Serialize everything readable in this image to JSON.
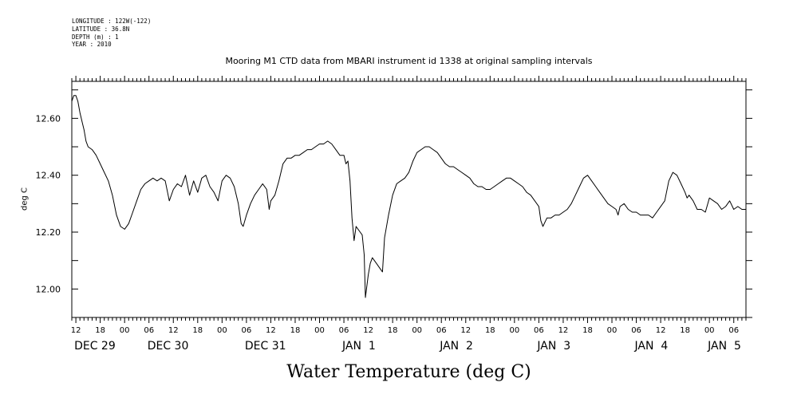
{
  "header": {
    "meta_lines": [
      "LONGITUDE : 122W(-122)",
      "LATITUDE : 36.8N",
      "DEPTH (m) : 1",
      "YEAR : 2010"
    ]
  },
  "chart_data": {
    "type": "line",
    "title": "Mooring M1 CTD data from MBARI instrument id 1338 at original sampling intervals",
    "xlabel": "Water Temperature (deg C)",
    "ylabel": "deg C",
    "ylim": [
      11.9,
      12.73
    ],
    "yticks": [
      12.0,
      12.2,
      12.4,
      12.6
    ],
    "ytick_labels": [
      "12.00",
      "12.20",
      "12.40",
      "12.60"
    ],
    "x_unit": "hours from 2010-12-29 00:00",
    "xlim": [
      11,
      177
    ],
    "hour_ticks": [
      {
        "h": 12,
        "label": "12"
      },
      {
        "h": 18,
        "label": "18"
      },
      {
        "h": 24,
        "label": "00"
      },
      {
        "h": 30,
        "label": "06"
      },
      {
        "h": 36,
        "label": "12"
      },
      {
        "h": 42,
        "label": "18"
      },
      {
        "h": 48,
        "label": "00"
      },
      {
        "h": 54,
        "label": "06"
      },
      {
        "h": 60,
        "label": "12"
      },
      {
        "h": 66,
        "label": "18"
      },
      {
        "h": 72,
        "label": "00"
      },
      {
        "h": 78,
        "label": "06"
      },
      {
        "h": 84,
        "label": "12"
      },
      {
        "h": 90,
        "label": "18"
      },
      {
        "h": 96,
        "label": "00"
      },
      {
        "h": 102,
        "label": "06"
      },
      {
        "h": 108,
        "label": "12"
      },
      {
        "h": 114,
        "label": "18"
      },
      {
        "h": 120,
        "label": "00"
      },
      {
        "h": 126,
        "label": "06"
      },
      {
        "h": 132,
        "label": "12"
      },
      {
        "h": 138,
        "label": "18"
      },
      {
        "h": 144,
        "label": "00"
      },
      {
        "h": 150,
        "label": "06"
      },
      {
        "h": 156,
        "label": "12"
      },
      {
        "h": 162,
        "label": "18"
      },
      {
        "h": 168,
        "label": "00"
      },
      {
        "h": 174,
        "label": "06"
      }
    ],
    "date_labels": [
      {
        "h": 12,
        "label": "DEC 29"
      },
      {
        "h": 30,
        "label": "DEC 30"
      },
      {
        "h": 54,
        "label": "DEC 31"
      },
      {
        "h": 78,
        "label": "JAN  1"
      },
      {
        "h": 102,
        "label": "JAN  2"
      },
      {
        "h": 126,
        "label": "JAN  3"
      },
      {
        "h": 150,
        "label": "JAN  4"
      },
      {
        "h": 168,
        "label": "JAN  5"
      }
    ],
    "series": [
      {
        "color": "#000000",
        "points": [
          [
            11.0,
            12.66
          ],
          [
            11.5,
            12.68
          ],
          [
            12.0,
            12.68
          ],
          [
            12.5,
            12.66
          ],
          [
            13.0,
            12.62
          ],
          [
            13.5,
            12.59
          ],
          [
            14.0,
            12.56
          ],
          [
            14.5,
            12.52
          ],
          [
            15.0,
            12.5
          ],
          [
            16.0,
            12.49
          ],
          [
            17.0,
            12.47
          ],
          [
            18.0,
            12.44
          ],
          [
            19.0,
            12.41
          ],
          [
            20.0,
            12.38
          ],
          [
            21.0,
            12.33
          ],
          [
            22.0,
            12.26
          ],
          [
            23.0,
            12.22
          ],
          [
            24.0,
            12.21
          ],
          [
            25.0,
            12.23
          ],
          [
            26.0,
            12.27
          ],
          [
            27.0,
            12.31
          ],
          [
            28.0,
            12.35
          ],
          [
            29.0,
            12.37
          ],
          [
            30.0,
            12.38
          ],
          [
            31.0,
            12.39
          ],
          [
            32.0,
            12.38
          ],
          [
            33.0,
            12.39
          ],
          [
            34.0,
            12.38
          ],
          [
            35.0,
            12.31
          ],
          [
            36.0,
            12.35
          ],
          [
            37.0,
            12.37
          ],
          [
            38.0,
            12.36
          ],
          [
            39.0,
            12.4
          ],
          [
            40.0,
            12.33
          ],
          [
            41.0,
            12.38
          ],
          [
            42.0,
            12.34
          ],
          [
            43.0,
            12.39
          ],
          [
            44.0,
            12.4
          ],
          [
            45.0,
            12.36
          ],
          [
            46.0,
            12.34
          ],
          [
            47.0,
            12.31
          ],
          [
            48.0,
            12.38
          ],
          [
            49.0,
            12.4
          ],
          [
            50.0,
            12.39
          ],
          [
            51.0,
            12.36
          ],
          [
            52.0,
            12.3
          ],
          [
            52.7,
            12.23
          ],
          [
            53.2,
            12.22
          ],
          [
            54.0,
            12.26
          ],
          [
            55.0,
            12.3
          ],
          [
            56.0,
            12.33
          ],
          [
            57.0,
            12.35
          ],
          [
            58.0,
            12.37
          ],
          [
            59.0,
            12.35
          ],
          [
            59.6,
            12.28
          ],
          [
            60.0,
            12.31
          ],
          [
            61.0,
            12.33
          ],
          [
            62.0,
            12.38
          ],
          [
            63.0,
            12.44
          ],
          [
            64.0,
            12.46
          ],
          [
            65.0,
            12.46
          ],
          [
            66.0,
            12.47
          ],
          [
            67.0,
            12.47
          ],
          [
            68.0,
            12.48
          ],
          [
            69.0,
            12.49
          ],
          [
            70.0,
            12.49
          ],
          [
            71.0,
            12.5
          ],
          [
            72.0,
            12.51
          ],
          [
            73.0,
            12.51
          ],
          [
            74.0,
            12.52
          ],
          [
            75.0,
            12.51
          ],
          [
            76.0,
            12.49
          ],
          [
            77.0,
            12.47
          ],
          [
            78.0,
            12.47
          ],
          [
            78.5,
            12.44
          ],
          [
            79.0,
            12.45
          ],
          [
            79.5,
            12.38
          ],
          [
            80.0,
            12.25
          ],
          [
            80.5,
            12.17
          ],
          [
            81.0,
            12.22
          ],
          [
            82.0,
            12.2
          ],
          [
            82.5,
            12.19
          ],
          [
            83.0,
            12.12
          ],
          [
            83.3,
            11.97
          ],
          [
            84.0,
            12.05
          ],
          [
            84.5,
            12.09
          ],
          [
            85.0,
            12.11
          ],
          [
            86.0,
            12.09
          ],
          [
            87.0,
            12.07
          ],
          [
            87.5,
            12.06
          ],
          [
            88.0,
            12.18
          ],
          [
            89.0,
            12.26
          ],
          [
            90.0,
            12.33
          ],
          [
            91.0,
            12.37
          ],
          [
            92.0,
            12.38
          ],
          [
            93.0,
            12.39
          ],
          [
            94.0,
            12.41
          ],
          [
            95.0,
            12.45
          ],
          [
            96.0,
            12.48
          ],
          [
            97.0,
            12.49
          ],
          [
            98.0,
            12.5
          ],
          [
            99.0,
            12.5
          ],
          [
            100.0,
            12.49
          ],
          [
            101.0,
            12.48
          ],
          [
            102.0,
            12.46
          ],
          [
            103.0,
            12.44
          ],
          [
            104.0,
            12.43
          ],
          [
            105.0,
            12.43
          ],
          [
            106.0,
            12.42
          ],
          [
            107.0,
            12.41
          ],
          [
            108.0,
            12.4
          ],
          [
            109.0,
            12.39
          ],
          [
            110.0,
            12.37
          ],
          [
            111.0,
            12.36
          ],
          [
            112.0,
            12.36
          ],
          [
            113.0,
            12.35
          ],
          [
            114.0,
            12.35
          ],
          [
            115.0,
            12.36
          ],
          [
            116.0,
            12.37
          ],
          [
            117.0,
            12.38
          ],
          [
            118.0,
            12.39
          ],
          [
            119.0,
            12.39
          ],
          [
            120.0,
            12.38
          ],
          [
            121.0,
            12.37
          ],
          [
            122.0,
            12.36
          ],
          [
            123.0,
            12.34
          ],
          [
            124.0,
            12.33
          ],
          [
            125.0,
            12.31
          ],
          [
            126.0,
            12.29
          ],
          [
            126.5,
            12.24
          ],
          [
            127.0,
            12.22
          ],
          [
            128.0,
            12.25
          ],
          [
            129.0,
            12.25
          ],
          [
            130.0,
            12.26
          ],
          [
            131.0,
            12.26
          ],
          [
            132.0,
            12.27
          ],
          [
            133.0,
            12.28
          ],
          [
            134.0,
            12.3
          ],
          [
            135.0,
            12.33
          ],
          [
            136.0,
            12.36
          ],
          [
            137.0,
            12.39
          ],
          [
            138.0,
            12.4
          ],
          [
            139.0,
            12.38
          ],
          [
            140.0,
            12.36
          ],
          [
            141.0,
            12.34
          ],
          [
            142.0,
            12.32
          ],
          [
            143.0,
            12.3
          ],
          [
            144.0,
            12.29
          ],
          [
            145.0,
            12.28
          ],
          [
            145.5,
            12.26
          ],
          [
            146.0,
            12.29
          ],
          [
            147.0,
            12.3
          ],
          [
            148.0,
            12.28
          ],
          [
            149.0,
            12.27
          ],
          [
            150.0,
            12.27
          ],
          [
            151.0,
            12.26
          ],
          [
            152.0,
            12.26
          ],
          [
            153.0,
            12.26
          ],
          [
            154.0,
            12.25
          ],
          [
            155.0,
            12.27
          ],
          [
            156.0,
            12.29
          ],
          [
            157.0,
            12.31
          ],
          [
            158.0,
            12.38
          ],
          [
            159.0,
            12.41
          ],
          [
            160.0,
            12.4
          ],
          [
            161.0,
            12.37
          ],
          [
            162.0,
            12.34
          ],
          [
            162.5,
            12.32
          ],
          [
            163.0,
            12.33
          ],
          [
            164.0,
            12.31
          ],
          [
            165.0,
            12.28
          ],
          [
            166.0,
            12.28
          ],
          [
            167.0,
            12.27
          ],
          [
            168.0,
            12.32
          ],
          [
            169.0,
            12.31
          ],
          [
            170.0,
            12.3
          ],
          [
            171.0,
            12.28
          ],
          [
            172.0,
            12.29
          ],
          [
            173.0,
            12.31
          ],
          [
            174.0,
            12.28
          ],
          [
            175.0,
            12.29
          ],
          [
            176.0,
            12.28
          ],
          [
            177.0,
            12.28
          ]
        ]
      }
    ]
  }
}
